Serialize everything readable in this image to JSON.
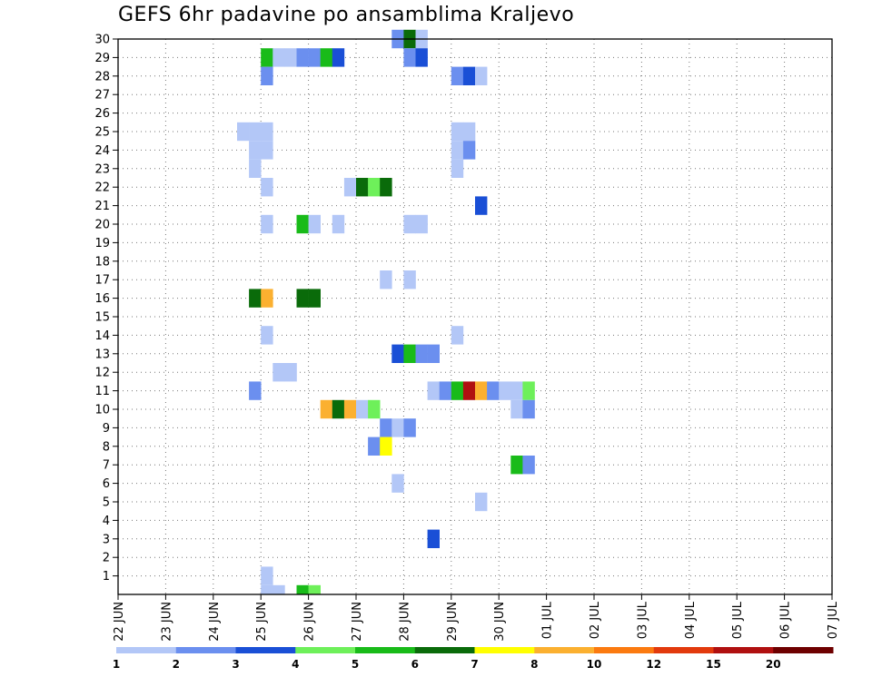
{
  "chart_data": {
    "type": "heatmap",
    "title": "GEFS 6hr padavine po ansamblima Kraljevo",
    "ylabel": "",
    "xlabel": "",
    "x_tick_labels": [
      "22 JUN",
      "23 JUN",
      "24 JUN",
      "25 JUN",
      "26 JUN",
      "27 JUN",
      "28 JUN",
      "29 JUN",
      "30 JUN",
      "01 JUL",
      "02 JUL",
      "03 JUL",
      "04 JUL",
      "05 JUL",
      "06 JUL",
      "07 JUL"
    ],
    "y_tick_labels": [
      "1",
      "2",
      "3",
      "4",
      "5",
      "6",
      "7",
      "8",
      "9",
      "10",
      "11",
      "12",
      "13",
      "14",
      "15",
      "16",
      "17",
      "18",
      "19",
      "20",
      "21",
      "22",
      "23",
      "24",
      "25",
      "26",
      "27",
      "28",
      "29",
      "30"
    ],
    "ylim": [
      0,
      30
    ],
    "x_step_hours": 6,
    "grid": true,
    "legend_position": "bottom",
    "legend": {
      "colors": [
        "#b3c7f7",
        "#6b8fef",
        "#1a4fd6",
        "#6ef05a",
        "#19bb19",
        "#0a6b0a",
        "#ffff00",
        "#fbb030",
        "#fb7a10",
        "#e23a0d",
        "#b01010",
        "#6e0000"
      ],
      "labels": [
        "1",
        "2",
        "3",
        "4",
        "5",
        "6",
        "7",
        "8",
        "10",
        "12",
        "15",
        "20"
      ]
    },
    "cells": [
      {
        "m": 30,
        "t": 23,
        "c": 1
      },
      {
        "m": 30,
        "t": 24,
        "c": 5
      },
      {
        "m": 30,
        "t": 25,
        "c": 0
      },
      {
        "m": 29,
        "t": 12,
        "c": 4
      },
      {
        "m": 29,
        "t": 13,
        "c": 0
      },
      {
        "m": 29,
        "t": 14,
        "c": 0
      },
      {
        "m": 29,
        "t": 15,
        "c": 1
      },
      {
        "m": 29,
        "t": 16,
        "c": 1
      },
      {
        "m": 29,
        "t": 17,
        "c": 4
      },
      {
        "m": 29,
        "t": 18,
        "c": 2
      },
      {
        "m": 29,
        "t": 24,
        "c": 1
      },
      {
        "m": 29,
        "t": 25,
        "c": 2
      },
      {
        "m": 28,
        "t": 12,
        "c": 1
      },
      {
        "m": 28,
        "t": 28,
        "c": 1
      },
      {
        "m": 28,
        "t": 29,
        "c": 2
      },
      {
        "m": 28,
        "t": 30,
        "c": 0
      },
      {
        "m": 25,
        "t": 10,
        "c": 0
      },
      {
        "m": 25,
        "t": 11,
        "c": 0
      },
      {
        "m": 25,
        "t": 12,
        "c": 0
      },
      {
        "m": 25,
        "t": 28,
        "c": 0
      },
      {
        "m": 25,
        "t": 29,
        "c": 0
      },
      {
        "m": 24,
        "t": 11,
        "c": 0
      },
      {
        "m": 24,
        "t": 12,
        "c": 0
      },
      {
        "m": 24,
        "t": 28,
        "c": 0
      },
      {
        "m": 24,
        "t": 29,
        "c": 1
      },
      {
        "m": 23,
        "t": 11,
        "c": 0
      },
      {
        "m": 23,
        "t": 28,
        "c": 0
      },
      {
        "m": 22,
        "t": 12,
        "c": 0
      },
      {
        "m": 22,
        "t": 19,
        "c": 0
      },
      {
        "m": 22,
        "t": 20,
        "c": 5
      },
      {
        "m": 22,
        "t": 21,
        "c": 3
      },
      {
        "m": 22,
        "t": 22,
        "c": 5
      },
      {
        "m": 21,
        "t": 30,
        "c": 2
      },
      {
        "m": 20,
        "t": 12,
        "c": 0
      },
      {
        "m": 20,
        "t": 15,
        "c": 4
      },
      {
        "m": 20,
        "t": 16,
        "c": 0
      },
      {
        "m": 20,
        "t": 18,
        "c": 0
      },
      {
        "m": 20,
        "t": 24,
        "c": 0
      },
      {
        "m": 20,
        "t": 25,
        "c": 0
      },
      {
        "m": 17,
        "t": 22,
        "c": 0
      },
      {
        "m": 17,
        "t": 24,
        "c": 0
      },
      {
        "m": 16,
        "t": 11,
        "c": 5
      },
      {
        "m": 16,
        "t": 12,
        "c": 7
      },
      {
        "m": 16,
        "t": 15,
        "c": 5
      },
      {
        "m": 16,
        "t": 16,
        "c": 5
      },
      {
        "m": 14,
        "t": 12,
        "c": 0
      },
      {
        "m": 14,
        "t": 28,
        "c": 0
      },
      {
        "m": 13,
        "t": 23,
        "c": 2
      },
      {
        "m": 13,
        "t": 24,
        "c": 4
      },
      {
        "m": 13,
        "t": 25,
        "c": 1
      },
      {
        "m": 13,
        "t": 26,
        "c": 1
      },
      {
        "m": 12,
        "t": 13,
        "c": 0
      },
      {
        "m": 12,
        "t": 14,
        "c": 0
      },
      {
        "m": 11,
        "t": 11,
        "c": 1
      },
      {
        "m": 11,
        "t": 26,
        "c": 0
      },
      {
        "m": 11,
        "t": 27,
        "c": 1
      },
      {
        "m": 11,
        "t": 28,
        "c": 4
      },
      {
        "m": 11,
        "t": 29,
        "c": 10
      },
      {
        "m": 11,
        "t": 30,
        "c": 7
      },
      {
        "m": 11,
        "t": 31,
        "c": 1
      },
      {
        "m": 11,
        "t": 32,
        "c": 0
      },
      {
        "m": 11,
        "t": 33,
        "c": 0
      },
      {
        "m": 11,
        "t": 34,
        "c": 3
      },
      {
        "m": 10,
        "t": 17,
        "c": 7
      },
      {
        "m": 10,
        "t": 18,
        "c": 5
      },
      {
        "m": 10,
        "t": 19,
        "c": 7
      },
      {
        "m": 10,
        "t": 20,
        "c": 0
      },
      {
        "m": 10,
        "t": 21,
        "c": 3
      },
      {
        "m": 10,
        "t": 33,
        "c": 0
      },
      {
        "m": 10,
        "t": 34,
        "c": 1
      },
      {
        "m": 9,
        "t": 22,
        "c": 1
      },
      {
        "m": 9,
        "t": 23,
        "c": 0
      },
      {
        "m": 9,
        "t": 24,
        "c": 1
      },
      {
        "m": 8,
        "t": 21,
        "c": 1
      },
      {
        "m": 8,
        "t": 22,
        "c": 6
      },
      {
        "m": 7,
        "t": 33,
        "c": 4
      },
      {
        "m": 7,
        "t": 34,
        "c": 1
      },
      {
        "m": 6,
        "t": 23,
        "c": 0
      },
      {
        "m": 5,
        "t": 30,
        "c": 0
      },
      {
        "m": 3,
        "t": 26,
        "c": 2
      },
      {
        "m": 1,
        "t": 12,
        "c": 0
      },
      {
        "m": 0,
        "t": 12,
        "c": 0
      },
      {
        "m": 0,
        "t": 13,
        "c": 0
      },
      {
        "m": 0,
        "t": 15,
        "c": 4
      },
      {
        "m": 0,
        "t": 16,
        "c": 3
      }
    ]
  }
}
